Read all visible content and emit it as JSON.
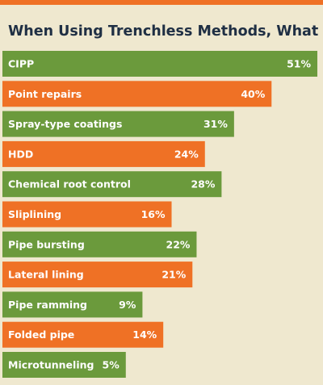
{
  "chart_data": {
    "type": "bar",
    "orientation": "horizontal",
    "title": "When Using Trenchless Methods, What % is:",
    "categories": [
      "CIPP",
      "Point repairs",
      "Spray-type coatings",
      "HDD",
      "Chemical root control",
      "Sliplining",
      "Pipe bursting",
      "Lateral lining",
      "Pipe ramming",
      "Folded pipe",
      "Microtunneling"
    ],
    "values": [
      51,
      40,
      31,
      24,
      28,
      16,
      22,
      21,
      9,
      14,
      5
    ],
    "value_labels": [
      "51%",
      "40%",
      "31%",
      "24%",
      "28%",
      "16%",
      "22%",
      "21%",
      "9%",
      "14%",
      "5%"
    ],
    "colors": [
      "#6b9a3c",
      "#ef7125",
      "#6b9a3c",
      "#ef7125",
      "#6b9a3c",
      "#ef7125",
      "#6b9a3c",
      "#ef7125",
      "#6b9a3c",
      "#ef7125",
      "#6b9a3c"
    ]
  }
}
